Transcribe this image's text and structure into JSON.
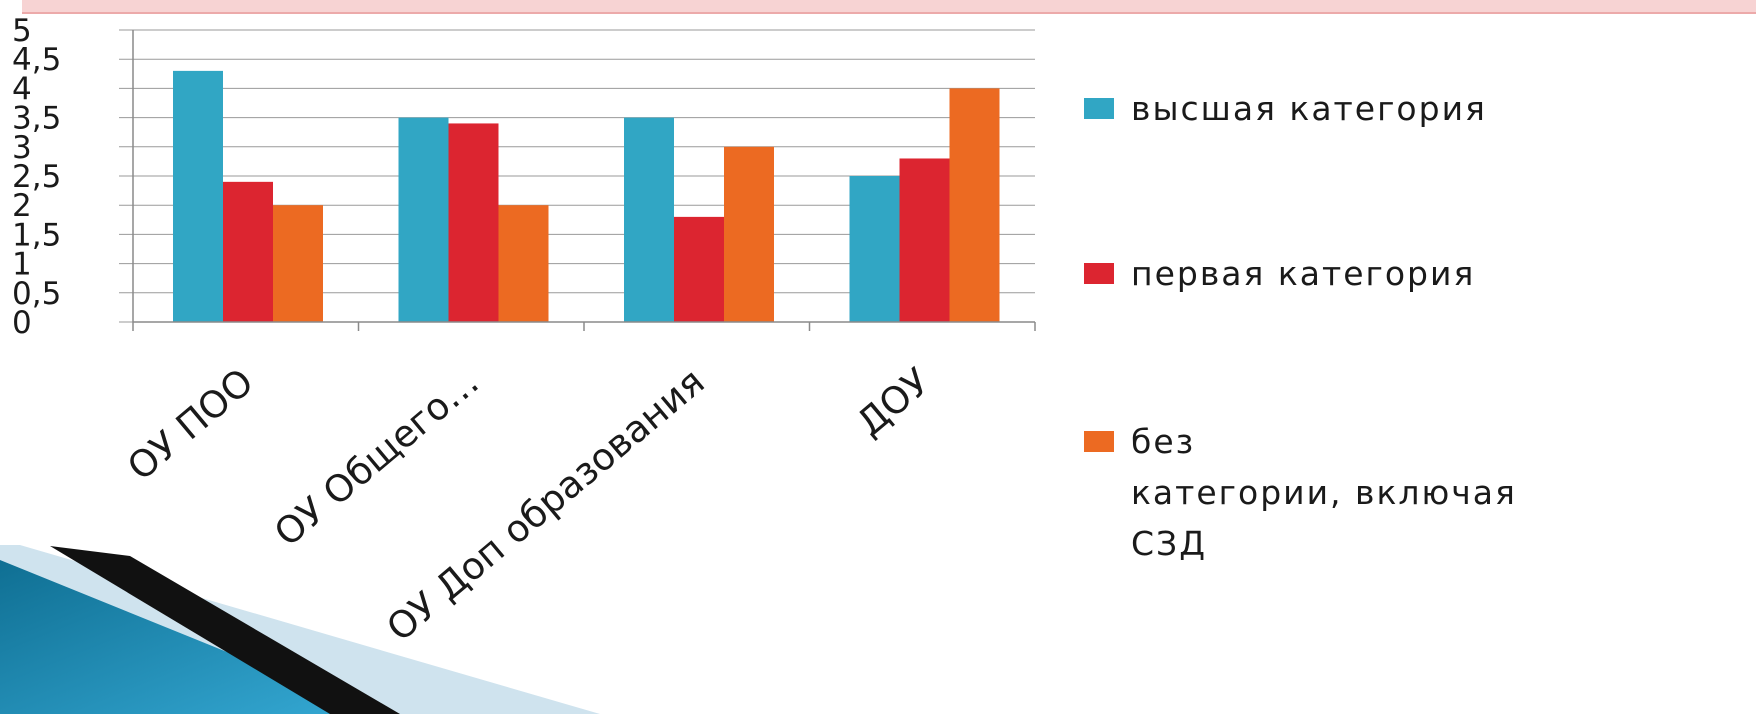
{
  "chart_data": {
    "type": "bar",
    "title": "",
    "xlabel": "",
    "ylabel": "",
    "ylim": [
      0,
      5
    ],
    "grid": true,
    "legend_position": "right",
    "y_ticks": [
      "0",
      "0,5",
      "1",
      "1,5",
      "2",
      "2,5",
      "3",
      "3,5",
      "4",
      "4,5",
      "5"
    ],
    "categories": [
      "ОУ ПОО",
      "ОУ Общего…",
      "ОУ Доп образования",
      "ДОУ"
    ],
    "series": [
      {
        "name": "высшая категория",
        "color": "#31a6c4",
        "values": [
          4.3,
          3.5,
          3.5,
          2.5
        ]
      },
      {
        "name": "первая категория",
        "color": "#dc2530",
        "values": [
          2.4,
          3.4,
          1.8,
          2.8
        ]
      },
      {
        "name": "без категории, включая СЗД",
        "color": "#ec6a22",
        "values": [
          2.0,
          2.0,
          3.0,
          4.0
        ]
      }
    ],
    "legend_lines": [
      [
        "высшая категория"
      ],
      [
        "первая категория"
      ],
      [
        "без",
        "категории, включая",
        "СЗД"
      ]
    ]
  },
  "colors": {
    "grid": "#9a9a9a",
    "axis": "#8a8a8a",
    "text": "#1a1a1a",
    "title_band": "#f7d3d3"
  }
}
